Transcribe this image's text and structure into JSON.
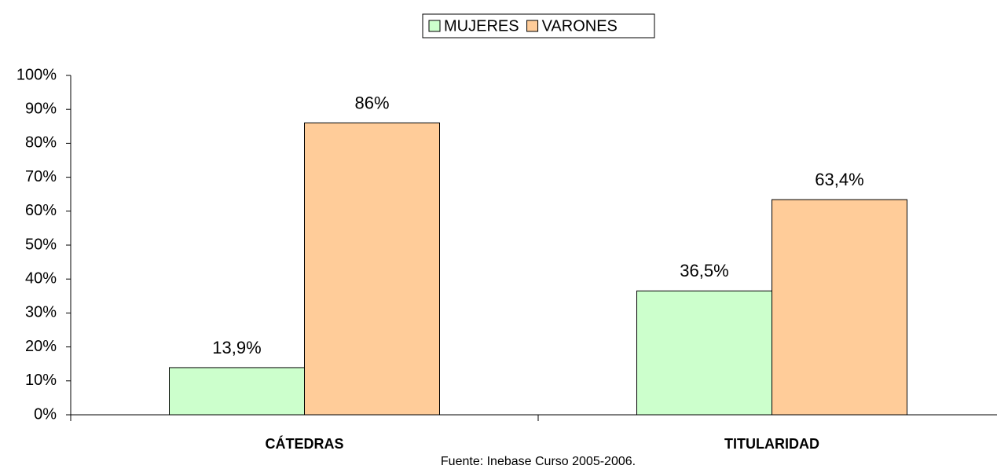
{
  "chart_data": {
    "type": "bar",
    "categories": [
      "CÁTEDRAS",
      "TITULARIDAD"
    ],
    "series": [
      {
        "name": "MUJERES",
        "color": "#ccffcc",
        "values": [
          13.9,
          36.5
        ],
        "value_labels": [
          "13,9%",
          "36,5%"
        ]
      },
      {
        "name": "VARONES",
        "color": "#ffcc99",
        "values": [
          86,
          63.4
        ],
        "value_labels": [
          "86%",
          "63,4%"
        ]
      }
    ],
    "ylim": [
      0,
      100
    ],
    "yticks": [
      {
        "value": 0,
        "label": "0%"
      },
      {
        "value": 10,
        "label": "10%"
      },
      {
        "value": 20,
        "label": "20%"
      },
      {
        "value": 30,
        "label": "30%"
      },
      {
        "value": 40,
        "label": "40%"
      },
      {
        "value": 50,
        "label": "50%"
      },
      {
        "value": 60,
        "label": "60%"
      },
      {
        "value": 70,
        "label": "70%"
      },
      {
        "value": 80,
        "label": "80%"
      },
      {
        "value": 90,
        "label": "90%"
      },
      {
        "value": 100,
        "label": "100%"
      }
    ],
    "legend": "top",
    "annotation": "Fuente: Inebase Curso 2005-2006."
  }
}
